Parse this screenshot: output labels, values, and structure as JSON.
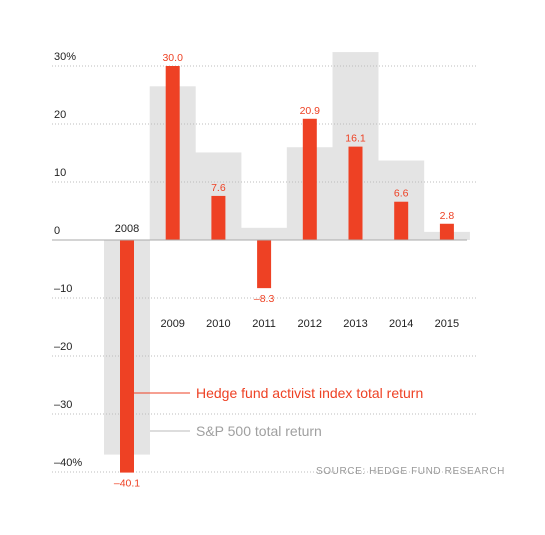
{
  "chart_data": {
    "type": "bar",
    "categories": [
      "2008",
      "2009",
      "2010",
      "2011",
      "2012",
      "2013",
      "2014",
      "2015"
    ],
    "series": [
      {
        "name": "Hedge fund activist index total return",
        "values": [
          -40.1,
          30.0,
          7.6,
          -8.3,
          20.9,
          16.1,
          6.6,
          2.8
        ],
        "labels": [
          "–40.1",
          "30.0",
          "7.6",
          "–8.3",
          "20.9",
          "16.1",
          "6.6",
          "2.8"
        ],
        "color": "#ee4124"
      },
      {
        "name": "S&P 500 total return",
        "values": [
          -37.0,
          26.5,
          15.1,
          2.1,
          16.0,
          32.4,
          13.7,
          1.4
        ],
        "color": "#e4e4e4"
      }
    ],
    "yticks": [
      30,
      20,
      10,
      0,
      -10,
      -20,
      -30,
      -40
    ],
    "ytick_labels": [
      "30%",
      "20",
      "10",
      "0",
      "–10",
      "–20",
      "–30",
      "–40%"
    ],
    "ylim": [
      -40,
      30
    ],
    "grid": "dotted horizontal",
    "legend": "bottom-right",
    "source": "SOURCE: HEDGE FUND RESEARCH"
  }
}
